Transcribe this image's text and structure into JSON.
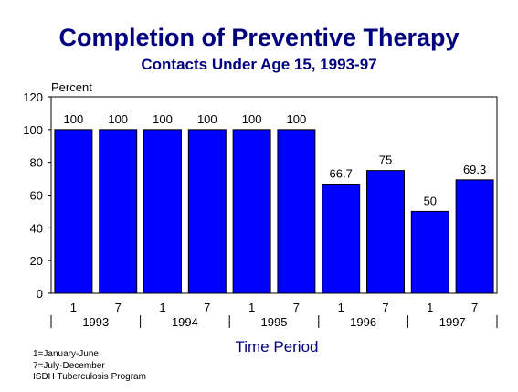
{
  "chart_data": {
    "type": "bar",
    "title": "Completion of Preventive Therapy",
    "subtitle": "Contacts Under Age 15, 1993-97",
    "ylabel": "Percent",
    "xlabel": "Time Period",
    "ylim": [
      0,
      120
    ],
    "yticks": [
      0,
      20,
      40,
      60,
      80,
      100,
      120
    ],
    "categories": [
      "1",
      "7",
      "1",
      "7",
      "1",
      "7",
      "1",
      "7",
      "1",
      "7"
    ],
    "groups": [
      "1993",
      "1994",
      "1995",
      "1996",
      "1997"
    ],
    "values": [
      100,
      100,
      100,
      100,
      100,
      100,
      66.7,
      75,
      50,
      69.3
    ],
    "data_labels": [
      "100",
      "100",
      "100",
      "100",
      "100",
      "100",
      "66.7",
      "75",
      "50",
      "69.3"
    ],
    "bar_color": "#0000ff",
    "grid": false,
    "legend": "none"
  },
  "notes": [
    "1=January-June",
    "7=July-December",
    "ISDH Tuberculosis Program"
  ]
}
